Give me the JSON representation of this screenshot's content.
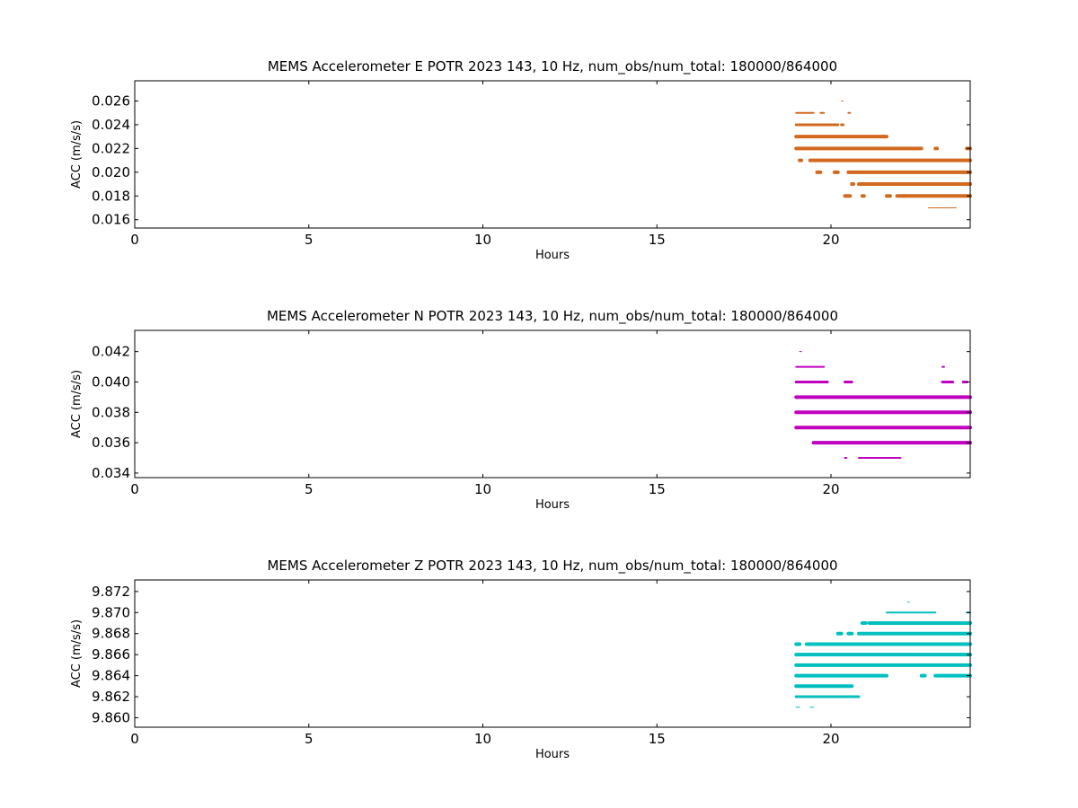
{
  "chart_data": [
    {
      "type": "scatter",
      "title": "MEMS Accelerometer E POTR 2023 143, 10 Hz, num_obs/num_total: 180000/864000",
      "xlabel": "Hours",
      "ylabel": "ACC (m/s/s)",
      "xlim": [
        0,
        24
      ],
      "ylim": [
        0.0153,
        0.0277
      ],
      "xticks": [
        0,
        5,
        10,
        15,
        20
      ],
      "xtick_labels": [
        "0",
        "5",
        "10",
        "15",
        "20"
      ],
      "yticks": [
        0.016,
        0.018,
        0.02,
        0.022,
        0.024,
        0.026
      ],
      "ytick_labels": [
        "0.016",
        "0.018",
        "0.020",
        "0.022",
        "0.024",
        "0.026"
      ],
      "grid": false,
      "color": "#d2691e",
      "series": [
        {
          "levels": [
            {
              "y": 0.026,
              "segments": [
                [
                  20.3,
                  20.35
                ]
              ],
              "weight": 1
            },
            {
              "y": 0.025,
              "segments": [
                [
                  19.0,
                  19.5
                ],
                [
                  19.7,
                  19.8
                ],
                [
                  20.5,
                  20.55
                ]
              ],
              "weight": 2
            },
            {
              "y": 0.024,
              "segments": [
                [
                  19.0,
                  20.2
                ],
                [
                  20.3,
                  20.35
                ]
              ],
              "weight": 3
            },
            {
              "y": 0.023,
              "segments": [
                [
                  19.0,
                  21.5
                ],
                [
                  21.5,
                  21.6
                ]
              ],
              "weight": 4
            },
            {
              "y": 0.022,
              "segments": [
                [
                  19.0,
                  22.6
                ],
                [
                  23.0,
                  23.05
                ],
                [
                  23.9,
                  24.0
                ]
              ],
              "weight": 4
            },
            {
              "y": 0.021,
              "segments": [
                [
                  19.1,
                  19.15
                ],
                [
                  19.4,
                  24.0
                ]
              ],
              "weight": 4
            },
            {
              "y": 0.02,
              "segments": [
                [
                  19.6,
                  19.7
                ],
                [
                  20.1,
                  20.2
                ],
                [
                  20.5,
                  24.0
                ]
              ],
              "weight": 4
            },
            {
              "y": 0.019,
              "segments": [
                [
                  20.6,
                  20.65
                ],
                [
                  20.8,
                  20.85
                ],
                [
                  20.9,
                  24.0
                ]
              ],
              "weight": 4
            },
            {
              "y": 0.018,
              "segments": [
                [
                  20.4,
                  20.55
                ],
                [
                  20.9,
                  20.95
                ],
                [
                  21.6,
                  21.7
                ],
                [
                  21.9,
                  22.1
                ],
                [
                  22.1,
                  24.0
                ]
              ],
              "weight": 4
            },
            {
              "y": 0.017,
              "segments": [
                [
                  22.8,
                  23.6
                ]
              ],
              "weight": 1
            }
          ]
        }
      ]
    },
    {
      "type": "scatter",
      "title": "MEMS Accelerometer N POTR 2023 143, 10 Hz, num_obs/num_total: 180000/864000",
      "xlabel": "Hours",
      "ylabel": "ACC (m/s/s)",
      "xlim": [
        0,
        24
      ],
      "ylim": [
        0.0337,
        0.0434
      ],
      "xticks": [
        0,
        5,
        10,
        15,
        20
      ],
      "xtick_labels": [
        "0",
        "5",
        "10",
        "15",
        "20"
      ],
      "yticks": [
        0.034,
        0.036,
        0.038,
        0.04,
        0.042
      ],
      "ytick_labels": [
        "0.034",
        "0.036",
        "0.038",
        "0.040",
        "0.042"
      ],
      "grid": false,
      "color": "#bf00bf",
      "series": [
        {
          "levels": [
            {
              "y": 0.042,
              "segments": [
                [
                  19.1,
                  19.15
                ]
              ],
              "weight": 1
            },
            {
              "y": 0.041,
              "segments": [
                [
                  19.0,
                  19.8
                ],
                [
                  23.2,
                  23.25
                ]
              ],
              "weight": 2
            },
            {
              "y": 0.04,
              "segments": [
                [
                  19.0,
                  19.9
                ],
                [
                  20.4,
                  20.6
                ],
                [
                  23.2,
                  23.5
                ],
                [
                  23.8,
                  23.9
                ]
              ],
              "weight": 3
            },
            {
              "y": 0.039,
              "segments": [
                [
                  19.0,
                  24.0
                ]
              ],
              "weight": 4
            },
            {
              "y": 0.038,
              "segments": [
                [
                  19.0,
                  24.0
                ]
              ],
              "weight": 4
            },
            {
              "y": 0.037,
              "segments": [
                [
                  19.0,
                  24.0
                ]
              ],
              "weight": 4
            },
            {
              "y": 0.036,
              "segments": [
                [
                  19.5,
                  24.0
                ]
              ],
              "weight": 4
            },
            {
              "y": 0.035,
              "segments": [
                [
                  20.4,
                  20.45
                ],
                [
                  20.8,
                  22.0
                ]
              ],
              "weight": 2
            }
          ]
        }
      ]
    },
    {
      "type": "scatter",
      "title": "MEMS Accelerometer Z POTR 2023 143, 10 Hz, num_obs/num_total: 180000/864000",
      "xlabel": "Hours",
      "ylabel": "ACC (m/s/s)",
      "xlim": [
        0,
        24
      ],
      "ylim": [
        9.8591,
        9.8731
      ],
      "xticks": [
        0,
        5,
        10,
        15,
        20
      ],
      "xtick_labels": [
        "0",
        "5",
        "10",
        "15",
        "20"
      ],
      "yticks": [
        9.86,
        9.862,
        9.864,
        9.866,
        9.868,
        9.87,
        9.872
      ],
      "ytick_labels": [
        "9.860",
        "9.862",
        "9.864",
        "9.866",
        "9.868",
        "9.870",
        "9.872"
      ],
      "grid": false,
      "color": "#00bfbf",
      "series": [
        {
          "levels": [
            {
              "y": 9.871,
              "segments": [
                [
                  22.2,
                  22.25
                ]
              ],
              "weight": 1
            },
            {
              "y": 9.87,
              "segments": [
                [
                  21.6,
                  23.0
                ],
                [
                  23.9,
                  24.0
                ]
              ],
              "weight": 2
            },
            {
              "y": 9.869,
              "segments": [
                [
                  20.9,
                  21.0
                ],
                [
                  21.1,
                  24.0
                ]
              ],
              "weight": 4
            },
            {
              "y": 9.868,
              "segments": [
                [
                  20.2,
                  20.3
                ],
                [
                  20.5,
                  20.6
                ],
                [
                  20.8,
                  24.0
                ]
              ],
              "weight": 4
            },
            {
              "y": 9.867,
              "segments": [
                [
                  19.0,
                  19.1
                ],
                [
                  19.3,
                  24.0
                ]
              ],
              "weight": 4
            },
            {
              "y": 9.866,
              "segments": [
                [
                  19.0,
                  24.0
                ]
              ],
              "weight": 4
            },
            {
              "y": 9.865,
              "segments": [
                [
                  19.0,
                  24.0
                ]
              ],
              "weight": 4
            },
            {
              "y": 9.864,
              "segments": [
                [
                  19.0,
                  21.6
                ],
                [
                  22.6,
                  22.7
                ],
                [
                  23.0,
                  24.0
                ]
              ],
              "weight": 4
            },
            {
              "y": 9.863,
              "segments": [
                [
                  19.0,
                  20.6
                ]
              ],
              "weight": 4
            },
            {
              "y": 9.862,
              "segments": [
                [
                  19.0,
                  20.8
                ]
              ],
              "weight": 3
            },
            {
              "y": 9.861,
              "segments": [
                [
                  19.0,
                  19.1
                ],
                [
                  19.4,
                  19.5
                ]
              ],
              "weight": 1
            }
          ]
        }
      ]
    }
  ]
}
